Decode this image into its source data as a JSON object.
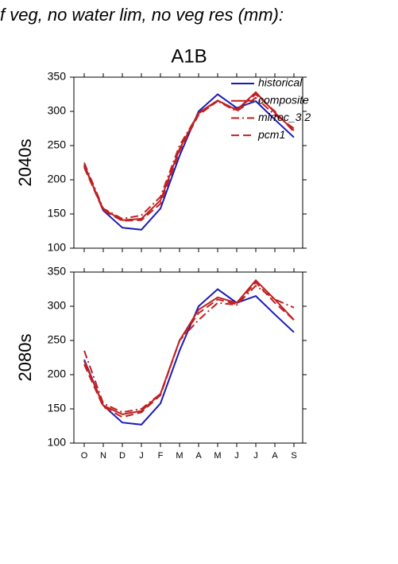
{
  "page_title": "f veg, no water lim, no veg res (mm):",
  "chart_data": [
    {
      "type": "line",
      "title": "A1B",
      "ylabel": "2040s",
      "categories": [
        null,
        null,
        null,
        null,
        null,
        null,
        null,
        null,
        null,
        null,
        null,
        null
      ],
      "ylim": [
        100,
        350
      ],
      "yticks": [
        100,
        150,
        200,
        250,
        300,
        350
      ],
      "legend": "upper right",
      "series": [
        {
          "name": "historical",
          "color": "#1a1ab8",
          "dash": "solid",
          "values": [
            222,
            155,
            130,
            127,
            158,
            235,
            300,
            325,
            305,
            315,
            288,
            262
          ]
        },
        {
          "name": "composite",
          "color": "#c02020",
          "dash": "solid",
          "values": [
            220,
            157,
            141,
            143,
            170,
            245,
            298,
            316,
            302,
            328,
            298,
            272
          ]
        },
        {
          "name": "mirroc_3.2",
          "color": "#c02020",
          "dash": "dashdot",
          "values": [
            225,
            158,
            143,
            148,
            175,
            250,
            297,
            315,
            300,
            320,
            295,
            275
          ]
        },
        {
          "name": "pcm1",
          "color": "#c02020",
          "dash": "dashed",
          "values": [
            218,
            155,
            140,
            141,
            165,
            242,
            295,
            315,
            303,
            325,
            300,
            270
          ]
        }
      ]
    },
    {
      "type": "line",
      "ylabel": "2080s",
      "categories": [
        "O",
        "N",
        "D",
        "J",
        "F",
        "M",
        "A",
        "M",
        "J",
        "J",
        "A",
        "S"
      ],
      "ylim": [
        100,
        350
      ],
      "yticks": [
        100,
        150,
        200,
        250,
        300,
        350
      ],
      "series": [
        {
          "color": "#1a1ab8",
          "dash": "solid",
          "values": [
            222,
            155,
            130,
            127,
            158,
            235,
            300,
            325,
            305,
            315,
            288,
            262
          ]
        },
        {
          "color": "#c02020",
          "dash": "solid",
          "values": [
            220,
            155,
            142,
            147,
            172,
            250,
            295,
            313,
            305,
            338,
            310,
            280
          ]
        },
        {
          "color": "#c02020",
          "dash": "dashdot",
          "values": [
            235,
            158,
            145,
            150,
            172,
            250,
            280,
            305,
            302,
            330,
            310,
            298
          ]
        },
        {
          "color": "#c02020",
          "dash": "dashed",
          "values": [
            215,
            153,
            138,
            145,
            170,
            250,
            290,
            310,
            303,
            335,
            305,
            280
          ]
        }
      ]
    }
  ]
}
